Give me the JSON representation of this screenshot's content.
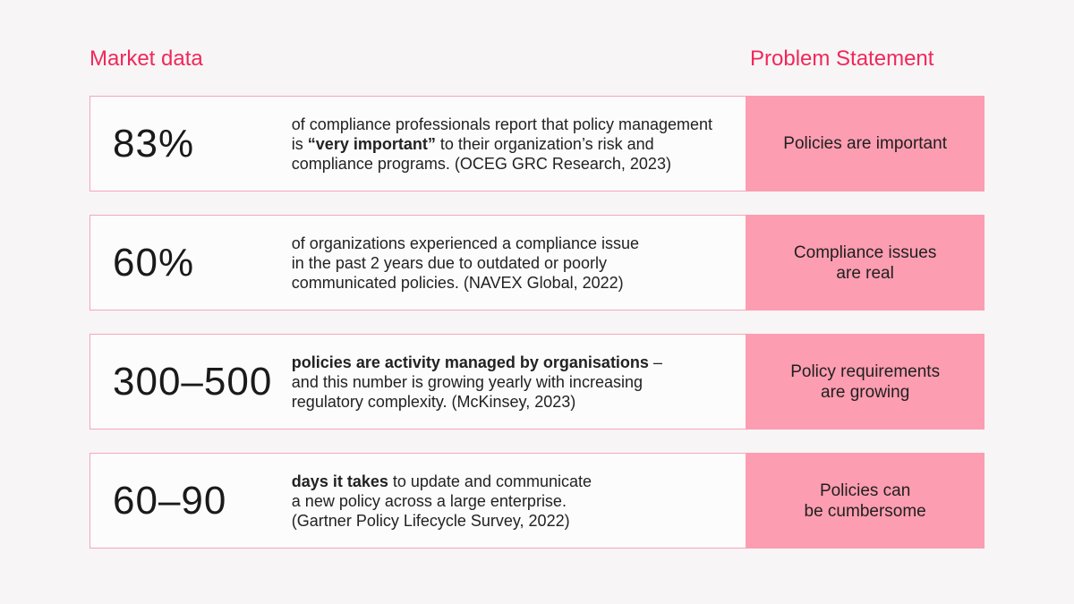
{
  "headings": {
    "market": "Market data",
    "problem": "Problem Statement"
  },
  "colors": {
    "accent": "#f0285a",
    "problem_bg": "#fc9db1",
    "row_border": "#f4a7b9",
    "page_bg": "#f8f5f6"
  },
  "rows": [
    {
      "stat": "83%",
      "desc_pre": "of compliance professionals report that policy management\nis ",
      "desc_bold": "“very important”",
      "desc_post": " to their organization’s risk and\ncompliance programs. (OCEG GRC Research, 2023)",
      "problem": "Policies are important"
    },
    {
      "stat": "60%",
      "desc_pre": "of organizations experienced a compliance issue\nin the past 2 years due to outdated or poorly\ncommunicated policies. (NAVEX Global, 2022)",
      "desc_bold": "",
      "desc_post": "",
      "problem": "Compliance issues\nare real"
    },
    {
      "stat": "300–500",
      "desc_pre": "",
      "desc_bold": "policies are activity managed by organisations",
      "desc_post": " –\nand this number is growing yearly with increasing\nregulatory complexity. (McKinsey, 2023)",
      "problem": "Policy requirements\nare growing"
    },
    {
      "stat": "60–90",
      "desc_pre": "",
      "desc_bold": "days it takes",
      "desc_post": " to update and communicate\na new policy across a large enterprise.\n(Gartner Policy Lifecycle Survey, 2022)",
      "problem": "Policies can\nbe cumbersome"
    }
  ]
}
